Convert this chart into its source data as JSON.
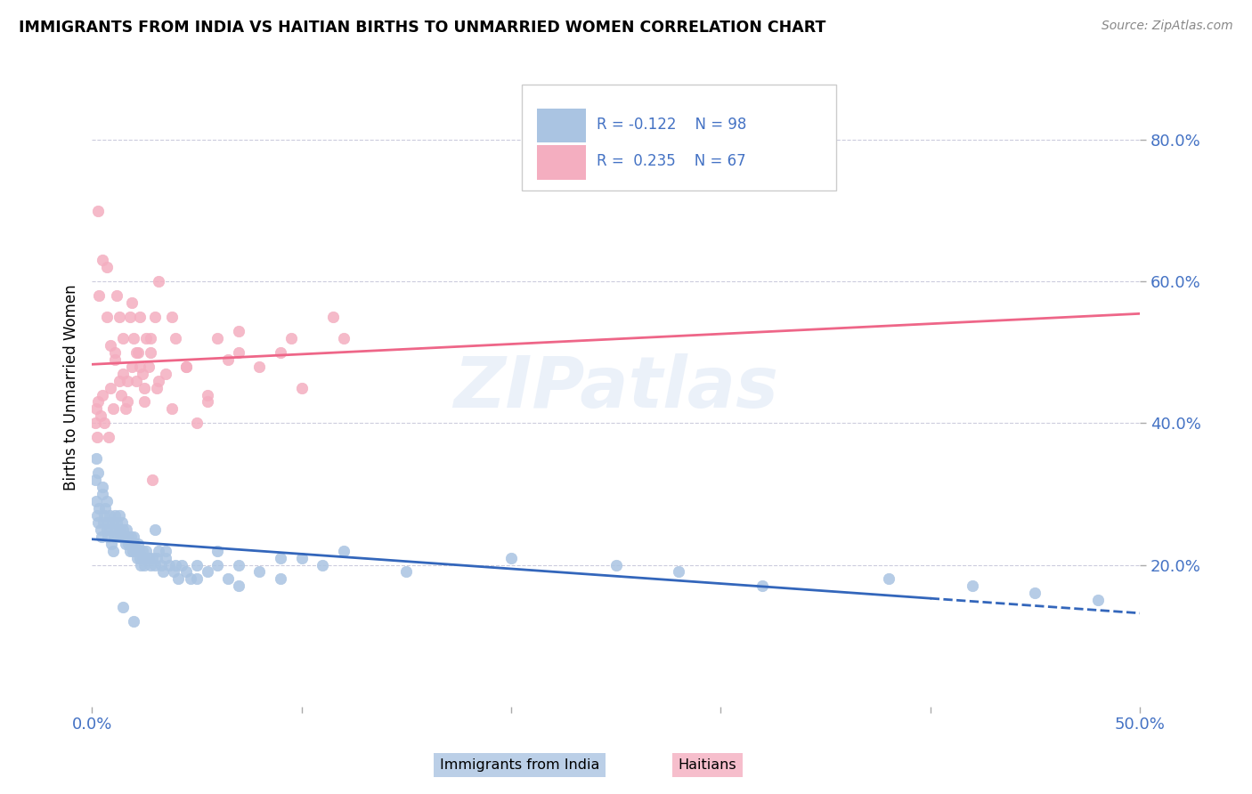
{
  "title": "IMMIGRANTS FROM INDIA VS HAITIAN BIRTHS TO UNMARRIED WOMEN CORRELATION CHART",
  "source": "Source: ZipAtlas.com",
  "ylabel": "Births to Unmarried Women",
  "xlim": [
    0.0,
    50.0
  ],
  "ylim": [
    0.0,
    90.0
  ],
  "y_ticks": [
    20.0,
    40.0,
    60.0,
    80.0
  ],
  "x_ticks": [
    0.0,
    10.0,
    20.0,
    30.0,
    40.0,
    50.0
  ],
  "blue_color": "#aac4e2",
  "pink_color": "#f4aec0",
  "line_blue": "#3366bb",
  "line_pink": "#ee6688",
  "text_blue": "#4472c4",
  "grid_color": "#ccccdd",
  "watermark": "ZIPatlas",
  "india_x": [
    0.15,
    0.2,
    0.25,
    0.3,
    0.35,
    0.4,
    0.45,
    0.5,
    0.55,
    0.6,
    0.65,
    0.7,
    0.75,
    0.8,
    0.85,
    0.9,
    0.95,
    1.0,
    1.05,
    1.1,
    1.15,
    1.2,
    1.25,
    1.3,
    1.35,
    1.4,
    1.45,
    1.5,
    1.55,
    1.6,
    1.65,
    1.7,
    1.75,
    1.8,
    1.85,
    1.9,
    1.95,
    2.0,
    2.05,
    2.1,
    2.15,
    2.2,
    2.25,
    2.3,
    2.35,
    2.4,
    2.45,
    2.5,
    2.6,
    2.7,
    2.8,
    2.9,
    3.0,
    3.1,
    3.2,
    3.3,
    3.4,
    3.5,
    3.7,
    3.9,
    4.1,
    4.3,
    4.5,
    4.7,
    5.0,
    5.5,
    6.0,
    6.5,
    7.0,
    8.0,
    9.0,
    10.0,
    11.0,
    12.0,
    15.0,
    20.0,
    25.0,
    28.0,
    32.0,
    38.0,
    42.0,
    45.0,
    48.0,
    0.2,
    0.3,
    0.5,
    0.7,
    1.0,
    1.5,
    2.0,
    2.5,
    3.0,
    3.5,
    4.0,
    5.0,
    6.0,
    7.0,
    9.0
  ],
  "india_y": [
    32.0,
    29.0,
    27.0,
    26.0,
    28.0,
    25.0,
    24.0,
    30.0,
    26.0,
    27.0,
    28.0,
    25.0,
    24.0,
    26.0,
    27.0,
    25.0,
    23.0,
    26.0,
    24.0,
    27.0,
    25.0,
    26.0,
    24.0,
    27.0,
    25.0,
    24.0,
    26.0,
    25.0,
    24.0,
    23.0,
    25.0,
    24.0,
    23.0,
    22.0,
    24.0,
    23.0,
    22.0,
    24.0,
    23.0,
    22.0,
    21.0,
    23.0,
    22.0,
    21.0,
    20.0,
    22.0,
    21.0,
    20.0,
    22.0,
    21.0,
    20.0,
    21.0,
    20.0,
    21.0,
    22.0,
    20.0,
    19.0,
    21.0,
    20.0,
    19.0,
    18.0,
    20.0,
    19.0,
    18.0,
    20.0,
    19.0,
    20.0,
    18.0,
    17.0,
    19.0,
    18.0,
    21.0,
    20.0,
    22.0,
    19.0,
    21.0,
    20.0,
    19.0,
    17.0,
    18.0,
    17.0,
    16.0,
    15.0,
    35.0,
    33.0,
    31.0,
    29.0,
    22.0,
    14.0,
    12.0,
    21.0,
    25.0,
    22.0,
    20.0,
    18.0,
    22.0,
    20.0,
    21.0
  ],
  "haiti_x": [
    0.15,
    0.2,
    0.25,
    0.3,
    0.35,
    0.4,
    0.5,
    0.6,
    0.7,
    0.8,
    0.9,
    1.0,
    1.1,
    1.2,
    1.3,
    1.4,
    1.5,
    1.6,
    1.7,
    1.8,
    1.9,
    2.0,
    2.1,
    2.2,
    2.3,
    2.4,
    2.5,
    2.6,
    2.7,
    2.8,
    2.9,
    3.0,
    3.1,
    3.2,
    3.5,
    3.8,
    4.0,
    4.5,
    5.0,
    5.5,
    6.0,
    6.5,
    7.0,
    8.0,
    9.0,
    10.0,
    11.5,
    0.3,
    0.5,
    0.7,
    0.9,
    1.1,
    1.3,
    1.5,
    1.7,
    1.9,
    2.1,
    2.3,
    2.5,
    2.8,
    3.2,
    3.8,
    4.5,
    5.5,
    7.0,
    9.5,
    12.0
  ],
  "haiti_y": [
    40.0,
    42.0,
    38.0,
    43.0,
    58.0,
    41.0,
    44.0,
    40.0,
    62.0,
    38.0,
    45.0,
    42.0,
    50.0,
    58.0,
    55.0,
    44.0,
    47.0,
    42.0,
    43.0,
    55.0,
    48.0,
    52.0,
    46.0,
    50.0,
    55.0,
    47.0,
    43.0,
    52.0,
    48.0,
    50.0,
    32.0,
    55.0,
    45.0,
    60.0,
    47.0,
    55.0,
    52.0,
    48.0,
    40.0,
    44.0,
    52.0,
    49.0,
    50.0,
    48.0,
    50.0,
    45.0,
    55.0,
    70.0,
    63.0,
    55.0,
    51.0,
    49.0,
    46.0,
    52.0,
    46.0,
    57.0,
    50.0,
    48.0,
    45.0,
    52.0,
    46.0,
    42.0,
    48.0,
    43.0,
    53.0,
    52.0,
    52.0
  ]
}
